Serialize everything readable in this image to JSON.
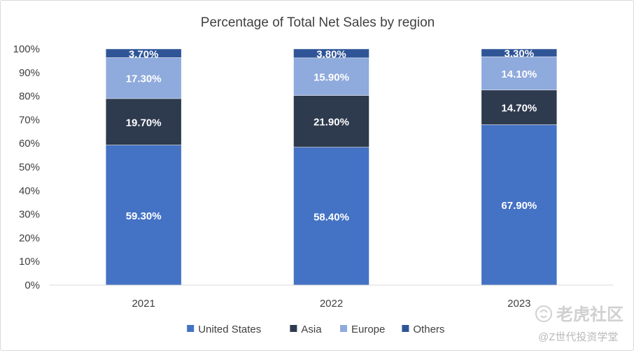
{
  "chart_data": {
    "type": "bar",
    "stacked": true,
    "title": "Percentage of Total Net Sales by region",
    "xlabel": "",
    "ylabel": "",
    "categories": [
      "2021",
      "2022",
      "2023"
    ],
    "series": [
      {
        "name": "United States",
        "values": [
          59.3,
          58.4,
          67.9
        ],
        "labels": [
          "59.30%",
          "58.40%",
          "67.90%"
        ],
        "color": "#4472c4"
      },
      {
        "name": "Asia",
        "values": [
          19.7,
          21.9,
          14.7
        ],
        "labels": [
          "19.70%",
          "21.90%",
          "14.70%"
        ],
        "color": "#2e3a4e"
      },
      {
        "name": "Europe",
        "values": [
          17.3,
          15.9,
          14.1
        ],
        "labels": [
          "17.30%",
          "15.90%",
          "14.10%"
        ],
        "color": "#8faadc"
      },
      {
        "name": "Others",
        "values": [
          3.7,
          3.8,
          3.3
        ],
        "labels": [
          "3.70%",
          "3.80%",
          "3.30%"
        ],
        "color": "#2f5597"
      }
    ],
    "ylim": [
      0,
      100
    ],
    "yticks": [
      "0%",
      "10%",
      "20%",
      "30%",
      "40%",
      "50%",
      "60%",
      "70%",
      "80%",
      "90%",
      "100%"
    ],
    "grid": false,
    "legend": "bottom"
  },
  "watermark": {
    "line1": "老虎社区",
    "line2": "@Z世代投资学堂"
  }
}
